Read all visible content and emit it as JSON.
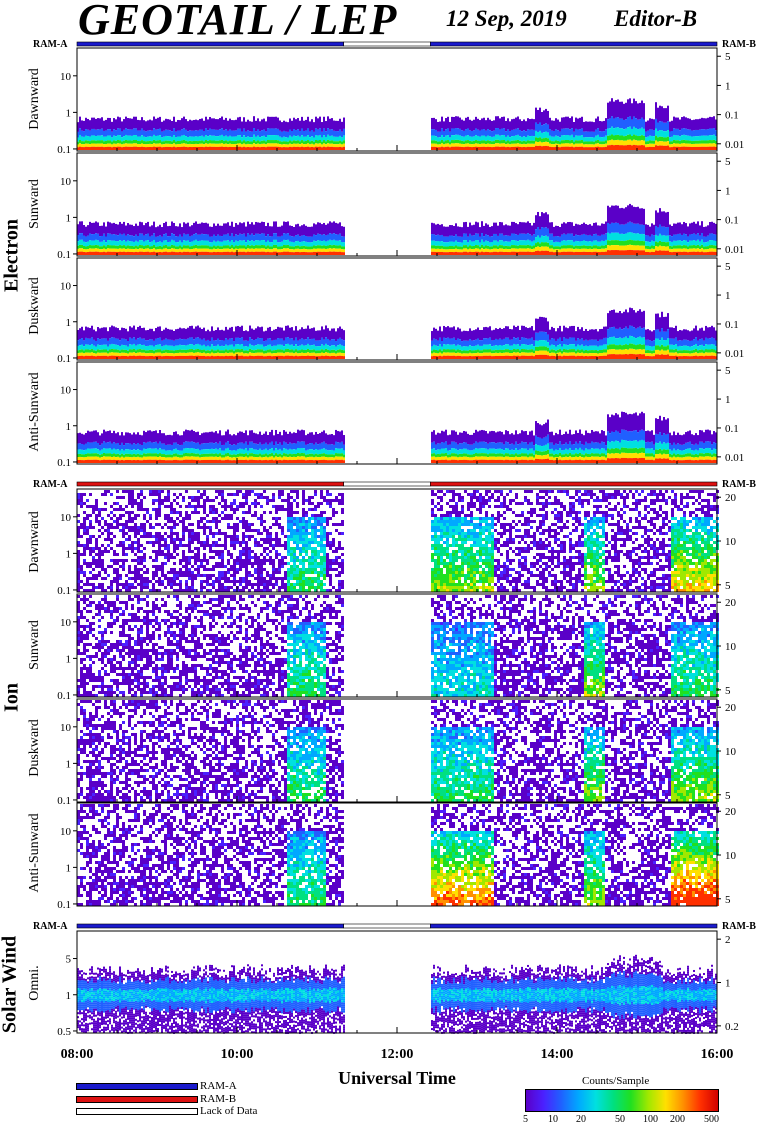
{
  "header": {
    "title": "GEOTAIL / LEP",
    "date": "12 Sep, 2019",
    "editor": "Editor-B"
  },
  "ram_labels": {
    "left": "RAM-A",
    "right": "RAM-B"
  },
  "groups": [
    {
      "name": "Electron",
      "panels": [
        "Dawnward",
        "Sunward",
        "Duskward",
        "Anti-Sunward"
      ]
    },
    {
      "name": "Ion",
      "panels": [
        "Dawnward",
        "Sunward",
        "Duskward",
        "Anti-Sunward"
      ]
    },
    {
      "name": "Solar Wind",
      "panels": [
        "Omni."
      ]
    }
  ],
  "x_axis": {
    "title": "Universal Time",
    "ticks": [
      "08:00",
      "10:00",
      "12:00",
      "14:00",
      "16:00"
    ]
  },
  "legend": {
    "items": [
      {
        "label": "RAM-A",
        "color": "#1a1acc"
      },
      {
        "label": "RAM-B",
        "color": "#dd1111"
      },
      {
        "label": "Lack of Data",
        "color": "#ffffff"
      }
    ],
    "colorbar_title": "Counts/Sample",
    "colorbar_ticks": [
      "5",
      "10",
      "20",
      "50",
      "100",
      "200",
      "500"
    ]
  },
  "chart_data": {
    "type": "heatmap",
    "xlim": [
      "08:00",
      "16:00"
    ],
    "data_gap": [
      "11:20",
      "12:25"
    ],
    "electron": {
      "y_left_ticks": [
        "10",
        "1",
        "0.1"
      ],
      "y_right_ticks": [
        "5",
        "1",
        "0.1",
        "0.01"
      ],
      "ram_mode": "RAM-A"
    },
    "ion": {
      "y_left_ticks": [
        "10",
        "1",
        "0.1"
      ],
      "y_right_ticks": [
        "20",
        "10",
        "5"
      ],
      "ram_mode": "RAM-B"
    },
    "solar_wind": {
      "y_left_ticks": [
        "5",
        "1",
        "0.5"
      ],
      "y_right_ticks": [
        "2",
        "1",
        "0.2"
      ],
      "ram_mode": "RAM-A"
    },
    "colorbar_range": [
      5,
      500
    ]
  }
}
